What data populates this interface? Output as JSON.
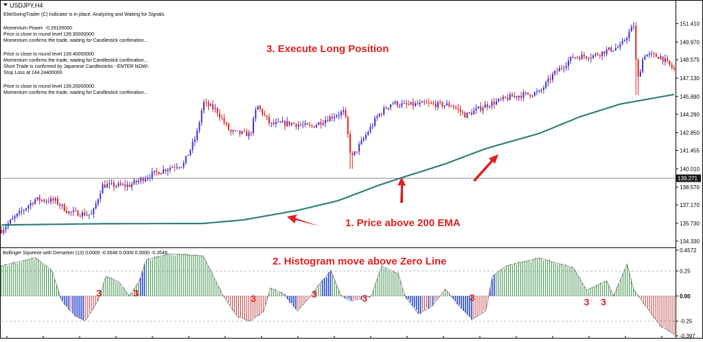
{
  "chart_data": [
    {
      "type": "candlestick",
      "symbol_label": "USDJPY,H4",
      "indicator_lines": [
        "EliteSwingTrader (C) Indicator is in place, Analyzing and Waiting for Signals.",
        "",
        "Momentum Power: -0.29105000",
        "Price is close to round level 139.30000000",
        "Momentum confirms the trade, waiting for Candlestick confimation...",
        "",
        "Price is close to round level 139.40000000",
        "Momentum confirms the trade, waiting for Candlestick confimation...",
        "Short Trade is confirmed by Japanese Candlesticks - ENTER NOW!.",
        "Stop Loss at 144.24400000",
        "",
        "Price is close to round level 139.20000000",
        "Momentum confirms the trade, waiting for Candlestick confimation..."
      ],
      "y_ticks": [
        "151.410",
        "149.970",
        "148.575",
        "147.130",
        "145.690",
        "144.290",
        "142.850",
        "141.455",
        "140.010",
        "138.570",
        "137.170",
        "135.730",
        "134.330"
      ],
      "ylim": [
        134.0,
        152.3
      ],
      "current_price_label": "139.271",
      "current_price": 139.271,
      "annotations": {
        "execute": "3. Execute Long Position",
        "ema": "1. Price above 200 EMA"
      },
      "ema_anchors": [
        [
          0,
          135.6
        ],
        [
          0.15,
          135.7
        ],
        [
          0.3,
          135.72
        ],
        [
          0.36,
          136.0
        ],
        [
          0.44,
          136.75
        ],
        [
          0.5,
          137.5
        ],
        [
          0.56,
          138.7
        ],
        [
          0.6,
          139.4
        ],
        [
          0.66,
          140.4
        ],
        [
          0.72,
          141.6
        ],
        [
          0.8,
          142.8
        ],
        [
          0.86,
          144.1
        ],
        [
          0.92,
          145.1
        ],
        [
          1.0,
          145.85
        ]
      ],
      "price_anchors": [
        [
          0,
          135.2
        ],
        [
          0.02,
          136.2
        ],
        [
          0.05,
          137.6
        ],
        [
          0.08,
          137.5
        ],
        [
          0.1,
          136.6
        ],
        [
          0.135,
          136.4
        ],
        [
          0.15,
          138.7
        ],
        [
          0.19,
          138.7
        ],
        [
          0.22,
          139.5
        ],
        [
          0.26,
          140.3
        ],
        [
          0.27,
          140.3
        ],
        [
          0.29,
          142.6
        ],
        [
          0.3,
          145.2
        ],
        [
          0.32,
          144.6
        ],
        [
          0.34,
          142.9
        ],
        [
          0.37,
          142.7
        ],
        [
          0.38,
          145.0
        ],
        [
          0.4,
          143.5
        ],
        [
          0.43,
          143.6
        ],
        [
          0.46,
          143.3
        ],
        [
          0.49,
          144.1
        ],
        [
          0.51,
          144.5
        ],
        [
          0.52,
          140.8
        ],
        [
          0.54,
          142.5
        ],
        [
          0.56,
          144.2
        ],
        [
          0.58,
          145.2
        ],
        [
          0.6,
          145.0
        ],
        [
          0.63,
          145.1
        ],
        [
          0.67,
          145.0
        ],
        [
          0.69,
          144.2
        ],
        [
          0.72,
          145.0
        ],
        [
          0.76,
          145.7
        ],
        [
          0.8,
          146.0
        ],
        [
          0.82,
          147.4
        ],
        [
          0.85,
          148.8
        ],
        [
          0.88,
          148.9
        ],
        [
          0.9,
          149.3
        ],
        [
          0.92,
          149.6
        ],
        [
          0.94,
          151.3
        ],
        [
          0.945,
          146.8
        ],
        [
          0.955,
          149.0
        ],
        [
          0.98,
          148.8
        ],
        [
          1.0,
          147.8
        ]
      ],
      "spike_events": [
        [
          0.52,
          140.0
        ],
        [
          0.945,
          145.8
        ]
      ]
    },
    {
      "type": "histogram",
      "title": "Bollinger Squeeze with Demarker (13) 0.0000 -0.3548 0.0000 0.0000 -0.3548",
      "annotation": "2. Histogram move above Zero Line",
      "y_ticks": [
        "0.4572",
        "0.25",
        "0.00",
        "-0.25",
        "-0.397"
      ],
      "ylim": [
        -0.397,
        0.4572
      ],
      "hist_anchors": [
        [
          0,
          0.3
        ],
        [
          0.05,
          0.38
        ],
        [
          0.075,
          0.26
        ],
        [
          0.09,
          -0.05
        ],
        [
          0.11,
          -0.2
        ],
        [
          0.125,
          -0.25
        ],
        [
          0.145,
          -0.03
        ],
        [
          0.155,
          0.2
        ],
        [
          0.175,
          0.14
        ],
        [
          0.19,
          0.0
        ],
        [
          0.205,
          0.15
        ],
        [
          0.215,
          0.36
        ],
        [
          0.25,
          0.42
        ],
        [
          0.3,
          0.4
        ],
        [
          0.33,
          0.0
        ],
        [
          0.35,
          -0.2
        ],
        [
          0.37,
          -0.25
        ],
        [
          0.39,
          -0.15
        ],
        [
          0.4,
          0.08
        ],
        [
          0.42,
          0.02
        ],
        [
          0.44,
          -0.15
        ],
        [
          0.46,
          0.0
        ],
        [
          0.47,
          0.1
        ],
        [
          0.49,
          0.25
        ],
        [
          0.505,
          0.0
        ],
        [
          0.52,
          -0.05
        ],
        [
          0.55,
          0.0
        ],
        [
          0.565,
          0.3
        ],
        [
          0.59,
          0.22
        ],
        [
          0.6,
          0.0
        ],
        [
          0.62,
          -0.18
        ],
        [
          0.64,
          -0.1
        ],
        [
          0.66,
          0.07
        ],
        [
          0.68,
          -0.1
        ],
        [
          0.7,
          -0.23
        ],
        [
          0.72,
          -0.15
        ],
        [
          0.73,
          0.2
        ],
        [
          0.75,
          0.3
        ],
        [
          0.8,
          0.38
        ],
        [
          0.85,
          0.28
        ],
        [
          0.87,
          0.06
        ],
        [
          0.9,
          0.15
        ],
        [
          0.91,
          0.0
        ],
        [
          0.93,
          0.32
        ],
        [
          0.94,
          0.06
        ],
        [
          0.96,
          -0.12
        ],
        [
          0.98,
          -0.3
        ],
        [
          1.0,
          -0.38
        ]
      ],
      "marker_label": "3",
      "marker_positions": [
        [
          0.145,
          0.03
        ],
        [
          0.2,
          0.03
        ],
        [
          0.375,
          -0.025
        ],
        [
          0.465,
          0.02
        ],
        [
          0.54,
          -0.02
        ],
        [
          0.7,
          -0.015
        ],
        [
          0.87,
          -0.06
        ],
        [
          0.895,
          -0.06
        ]
      ]
    }
  ],
  "colors": {
    "bull_candle": "#3a2fd1",
    "bear_candle": "#e02020",
    "ema_line": "#2e7f7a",
    "hist_positive": "#2f8a3b",
    "hist_positive_bright": "#1f3fd0",
    "hist_negative": "#c43b3b",
    "hist_negative_bright": "#1f3fd0",
    "annotation_red": "#e02020",
    "current_price_box": "#1a1a1a"
  }
}
